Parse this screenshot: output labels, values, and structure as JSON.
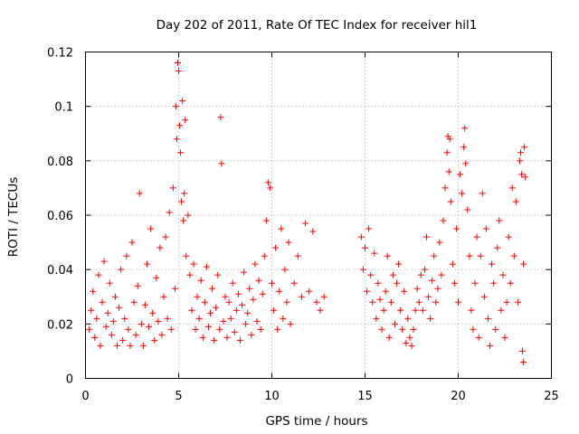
{
  "chart_data": {
    "type": "scatter",
    "title": "Day 202 of 2011, Rate Of TEC Index for receiver hil1",
    "xlabel": "GPS time / hours",
    "ylabel": "ROTI / TECUs",
    "xlim": [
      0,
      25
    ],
    "ylim": [
      0,
      0.12
    ],
    "x_ticks": [
      0,
      5,
      10,
      15,
      20,
      25
    ],
    "y_ticks": [
      0,
      0.02,
      0.04,
      0.06,
      0.08,
      0.1,
      0.12
    ],
    "x_tick_labels": [
      "0",
      "5",
      "10",
      "15",
      "20",
      "25"
    ],
    "y_tick_labels": [
      "0",
      "0.02",
      "0.04",
      "0.06",
      "0.08",
      "0.1",
      "0.12"
    ],
    "grid": true,
    "marker": "+",
    "series_color": "#ff0000",
    "series": [
      {
        "name": "ROTI",
        "points": [
          [
            0.2,
            0.018
          ],
          [
            0.3,
            0.025
          ],
          [
            0.4,
            0.032
          ],
          [
            0.5,
            0.015
          ],
          [
            0.6,
            0.022
          ],
          [
            0.7,
            0.038
          ],
          [
            0.8,
            0.012
          ],
          [
            0.9,
            0.028
          ],
          [
            1.0,
            0.043
          ],
          [
            1.1,
            0.019
          ],
          [
            1.2,
            0.024
          ],
          [
            1.3,
            0.035
          ],
          [
            1.4,
            0.016
          ],
          [
            1.5,
            0.021
          ],
          [
            1.6,
            0.03
          ],
          [
            1.7,
            0.012
          ],
          [
            1.8,
            0.026
          ],
          [
            1.9,
            0.04
          ],
          [
            2.0,
            0.014
          ],
          [
            2.1,
            0.022
          ],
          [
            2.2,
            0.045
          ],
          [
            2.3,
            0.018
          ],
          [
            2.4,
            0.012
          ],
          [
            2.5,
            0.05
          ],
          [
            2.6,
            0.028
          ],
          [
            2.7,
            0.016
          ],
          [
            2.8,
            0.034
          ],
          [
            2.9,
            0.068
          ],
          [
            3.0,
            0.02
          ],
          [
            3.1,
            0.012
          ],
          [
            3.2,
            0.027
          ],
          [
            3.3,
            0.042
          ],
          [
            3.4,
            0.019
          ],
          [
            3.5,
            0.055
          ],
          [
            3.6,
            0.024
          ],
          [
            3.7,
            0.014
          ],
          [
            3.8,
            0.037
          ],
          [
            3.9,
            0.021
          ],
          [
            4.0,
            0.048
          ],
          [
            4.1,
            0.016
          ],
          [
            4.2,
            0.03
          ],
          [
            4.3,
            0.052
          ],
          [
            4.4,
            0.022
          ],
          [
            4.5,
            0.061
          ],
          [
            4.6,
            0.018
          ],
          [
            4.7,
            0.07
          ],
          [
            4.8,
            0.033
          ],
          [
            4.85,
            0.1
          ],
          [
            4.9,
            0.088
          ],
          [
            4.95,
            0.116
          ],
          [
            5.0,
            0.113
          ],
          [
            5.05,
            0.093
          ],
          [
            5.1,
            0.083
          ],
          [
            5.15,
            0.065
          ],
          [
            5.2,
            0.102
          ],
          [
            5.25,
            0.058
          ],
          [
            5.3,
            0.068
          ],
          [
            5.35,
            0.095
          ],
          [
            5.4,
            0.045
          ],
          [
            5.5,
            0.06
          ],
          [
            5.6,
            0.038
          ],
          [
            5.7,
            0.025
          ],
          [
            5.8,
            0.042
          ],
          [
            5.9,
            0.018
          ],
          [
            6.0,
            0.03
          ],
          [
            6.1,
            0.022
          ],
          [
            6.2,
            0.036
          ],
          [
            6.3,
            0.015
          ],
          [
            6.4,
            0.028
          ],
          [
            6.5,
            0.041
          ],
          [
            6.6,
            0.019
          ],
          [
            6.7,
            0.024
          ],
          [
            6.8,
            0.033
          ],
          [
            6.9,
            0.014
          ],
          [
            7.0,
            0.026
          ],
          [
            7.1,
            0.038
          ],
          [
            7.2,
            0.018
          ],
          [
            7.25,
            0.096
          ],
          [
            7.3,
            0.079
          ],
          [
            7.4,
            0.021
          ],
          [
            7.5,
            0.03
          ],
          [
            7.6,
            0.015
          ],
          [
            7.7,
            0.028
          ],
          [
            7.8,
            0.022
          ],
          [
            7.9,
            0.035
          ],
          [
            8.0,
            0.017
          ],
          [
            8.1,
            0.025
          ],
          [
            8.2,
            0.031
          ],
          [
            8.3,
            0.014
          ],
          [
            8.4,
            0.027
          ],
          [
            8.5,
            0.039
          ],
          [
            8.6,
            0.02
          ],
          [
            8.7,
            0.024
          ],
          [
            8.8,
            0.033
          ],
          [
            8.9,
            0.016
          ],
          [
            9.0,
            0.029
          ],
          [
            9.1,
            0.042
          ],
          [
            9.2,
            0.021
          ],
          [
            9.3,
            0.036
          ],
          [
            9.4,
            0.018
          ],
          [
            9.5,
            0.031
          ],
          [
            9.6,
            0.045
          ],
          [
            9.7,
            0.058
          ],
          [
            9.8,
            0.072
          ],
          [
            9.9,
            0.07
          ],
          [
            10.0,
            0.035
          ],
          [
            10.1,
            0.025
          ],
          [
            10.2,
            0.048
          ],
          [
            10.3,
            0.018
          ],
          [
            10.4,
            0.032
          ],
          [
            10.5,
            0.055
          ],
          [
            10.6,
            0.022
          ],
          [
            10.7,
            0.04
          ],
          [
            10.8,
            0.028
          ],
          [
            10.9,
            0.05
          ],
          [
            11.0,
            0.02
          ],
          [
            11.2,
            0.035
          ],
          [
            11.4,
            0.045
          ],
          [
            11.6,
            0.03
          ],
          [
            11.8,
            0.057
          ],
          [
            12.0,
            0.032
          ],
          [
            12.2,
            0.054
          ],
          [
            12.4,
            0.028
          ],
          [
            12.6,
            0.025
          ],
          [
            12.8,
            0.03
          ],
          [
            14.8,
            0.052
          ],
          [
            14.9,
            0.04
          ],
          [
            15.0,
            0.048
          ],
          [
            15.1,
            0.032
          ],
          [
            15.2,
            0.055
          ],
          [
            15.3,
            0.038
          ],
          [
            15.4,
            0.028
          ],
          [
            15.5,
            0.046
          ],
          [
            15.6,
            0.022
          ],
          [
            15.7,
            0.035
          ],
          [
            15.8,
            0.029
          ],
          [
            15.9,
            0.018
          ],
          [
            16.0,
            0.025
          ],
          [
            16.1,
            0.032
          ],
          [
            16.2,
            0.045
          ],
          [
            16.3,
            0.015
          ],
          [
            16.4,
            0.028
          ],
          [
            16.5,
            0.038
          ],
          [
            16.6,
            0.02
          ],
          [
            16.7,
            0.035
          ],
          [
            16.8,
            0.042
          ],
          [
            16.9,
            0.025
          ],
          [
            17.0,
            0.018
          ],
          [
            17.1,
            0.032
          ],
          [
            17.2,
            0.013
          ],
          [
            17.3,
            0.022
          ],
          [
            17.4,
            0.015
          ],
          [
            17.5,
            0.012
          ],
          [
            17.6,
            0.018
          ],
          [
            17.7,
            0.025
          ],
          [
            17.8,
            0.033
          ],
          [
            17.9,
            0.028
          ],
          [
            18.0,
            0.038
          ],
          [
            18.1,
            0.025
          ],
          [
            18.2,
            0.04
          ],
          [
            18.3,
            0.052
          ],
          [
            18.4,
            0.03
          ],
          [
            18.5,
            0.022
          ],
          [
            18.6,
            0.036
          ],
          [
            18.7,
            0.045
          ],
          [
            18.8,
            0.028
          ],
          [
            18.9,
            0.033
          ],
          [
            19.0,
            0.05
          ],
          [
            19.1,
            0.038
          ],
          [
            19.2,
            0.058
          ],
          [
            19.3,
            0.07
          ],
          [
            19.4,
            0.083
          ],
          [
            19.45,
            0.089
          ],
          [
            19.5,
            0.076
          ],
          [
            19.55,
            0.088
          ],
          [
            19.6,
            0.065
          ],
          [
            19.7,
            0.042
          ],
          [
            19.8,
            0.035
          ],
          [
            19.9,
            0.055
          ],
          [
            20.0,
            0.028
          ],
          [
            20.1,
            0.075
          ],
          [
            20.2,
            0.068
          ],
          [
            20.3,
            0.085
          ],
          [
            20.35,
            0.092
          ],
          [
            20.4,
            0.079
          ],
          [
            20.5,
            0.062
          ],
          [
            20.6,
            0.045
          ],
          [
            20.7,
            0.025
          ],
          [
            20.8,
            0.018
          ],
          [
            20.9,
            0.035
          ],
          [
            21.0,
            0.052
          ],
          [
            21.1,
            0.015
          ],
          [
            21.2,
            0.045
          ],
          [
            21.3,
            0.068
          ],
          [
            21.4,
            0.03
          ],
          [
            21.5,
            0.055
          ],
          [
            21.6,
            0.022
          ],
          [
            21.7,
            0.012
          ],
          [
            21.8,
            0.042
          ],
          [
            21.9,
            0.035
          ],
          [
            22.0,
            0.018
          ],
          [
            22.1,
            0.048
          ],
          [
            22.2,
            0.058
          ],
          [
            22.3,
            0.025
          ],
          [
            22.4,
            0.038
          ],
          [
            22.5,
            0.015
          ],
          [
            22.6,
            0.028
          ],
          [
            22.7,
            0.052
          ],
          [
            22.8,
            0.035
          ],
          [
            22.9,
            0.07
          ],
          [
            23.0,
            0.045
          ],
          [
            23.1,
            0.065
          ],
          [
            23.2,
            0.028
          ],
          [
            23.3,
            0.08
          ],
          [
            23.35,
            0.083
          ],
          [
            23.4,
            0.075
          ],
          [
            23.45,
            0.01
          ],
          [
            23.5,
            0.042
          ],
          [
            23.55,
            0.085
          ],
          [
            23.6,
            0.074
          ],
          [
            23.5,
            0.006
          ]
        ]
      }
    ]
  }
}
